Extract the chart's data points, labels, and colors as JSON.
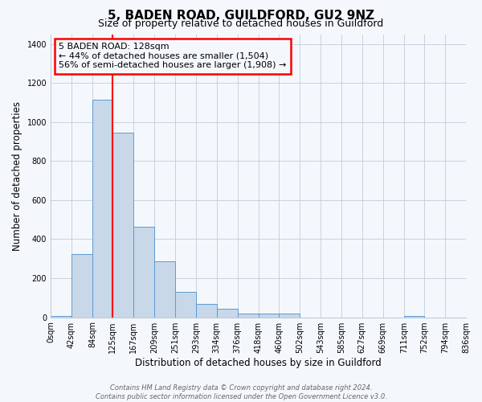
{
  "title": "5, BADEN ROAD, GUILDFORD, GU2 9NZ",
  "subtitle": "Size of property relative to detached houses in Guildford",
  "xlabel": "Distribution of detached houses by size in Guildford",
  "ylabel": "Number of detached properties",
  "bar_color": "#c8d8e8",
  "bar_edge_color": "#5b9bd5",
  "grid_color": "#c0ccd8",
  "vline_x": 125,
  "vline_color": "red",
  "annotation_box_text": "5 BADEN ROAD: 128sqm\n← 44% of detached houses are smaller (1,504)\n56% of semi-detached houses are larger (1,908) →",
  "annotation_box_edge_color": "red",
  "bin_edges": [
    0,
    42,
    84,
    125,
    167,
    209,
    251,
    293,
    334,
    376,
    418,
    460,
    502,
    543,
    585,
    627,
    669,
    711,
    752,
    794,
    836
  ],
  "bin_heights": [
    5,
    325,
    1115,
    947,
    462,
    285,
    130,
    70,
    45,
    20,
    20,
    17,
    0,
    0,
    0,
    0,
    0,
    5,
    0,
    0
  ],
  "ylim": [
    0,
    1450
  ],
  "yticks": [
    0,
    200,
    400,
    600,
    800,
    1000,
    1200,
    1400
  ],
  "xtick_labels": [
    "0sqm",
    "42sqm",
    "84sqm",
    "125sqm",
    "167sqm",
    "209sqm",
    "251sqm",
    "293sqm",
    "334sqm",
    "376sqm",
    "418sqm",
    "460sqm",
    "502sqm",
    "543sqm",
    "585sqm",
    "627sqm",
    "669sqm",
    "711sqm",
    "752sqm",
    "794sqm",
    "836sqm"
  ],
  "footnote": "Contains HM Land Registry data © Crown copyright and database right 2024.\nContains public sector information licensed under the Open Government Licence v3.0.",
  "bg_color": "#f4f8fd",
  "title_fontsize": 11,
  "subtitle_fontsize": 9,
  "axis_label_fontsize": 8.5,
  "tick_fontsize": 7,
  "footnote_fontsize": 6,
  "annotation_fontsize": 8
}
